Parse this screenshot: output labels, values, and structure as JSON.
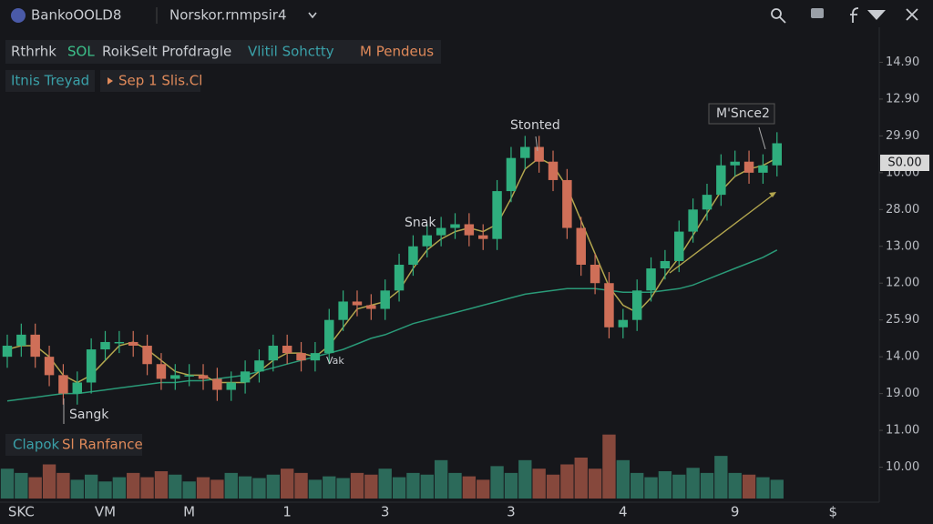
{
  "toolbar": {
    "title": "BankoOOLD8",
    "menu": "Norskor.rnmpsir4"
  },
  "chart_data": {
    "type": "candlestick",
    "legend": [
      {
        "text": "Rthrhk",
        "color": "#c9ccd1"
      },
      {
        "text": "SOL",
        "color": "#3cc08a"
      },
      {
        "text": "RoikSelt Profdragle",
        "color": "#c9ccd1"
      },
      {
        "text": "Vlitil Sohctty",
        "color": "#3aa0a8"
      },
      {
        "text": "M Pendeus",
        "color": "#e08a5a"
      }
    ],
    "legend2": [
      {
        "text": "Itnis Treyad",
        "color": "#3aa0a8"
      },
      {
        "text": "Sep 1 Slis.Cl",
        "color": "#e08a5a"
      }
    ],
    "legend3": [
      {
        "text": "Clapok",
        "color": "#3aa0a8"
      },
      {
        "text": "Sl Ranfance",
        "color": "#e08a5a"
      }
    ],
    "annotations": [
      "Stonted",
      "Snak",
      "Sangk",
      "M'Snce2",
      "Vak"
    ],
    "price_badge": "S0.00",
    "categories": [
      null,
      "SKC",
      null,
      null,
      null,
      null,
      null,
      "VM",
      null,
      null,
      null,
      null,
      null,
      "M",
      null,
      null,
      null,
      null,
      null,
      null,
      "1",
      null,
      null,
      null,
      null,
      null,
      null,
      "3",
      null,
      null,
      null,
      null,
      null,
      null,
      null,
      null,
      "3",
      null,
      null,
      null,
      null,
      null,
      null,
      null,
      "4",
      null,
      null,
      null,
      null,
      null,
      null,
      null,
      "9",
      null,
      null,
      null,
      null,
      null,
      null,
      "$"
    ],
    "open": [
      4.0,
      4.3,
      4.6,
      4.0,
      3.5,
      3.0,
      3.3,
      4.2,
      4.4,
      4.4,
      4.3,
      3.8,
      3.4,
      3.5,
      3.5,
      3.4,
      3.1,
      3.3,
      3.6,
      3.9,
      4.3,
      4.1,
      3.9,
      4.1,
      5.0,
      5.5,
      5.4,
      5.3,
      5.8,
      6.5,
      7.0,
      7.3,
      7.5,
      7.6,
      7.3,
      7.2,
      8.5,
      9.4,
      9.7,
      9.3,
      8.8,
      7.5,
      6.5,
      6.0,
      4.8,
      5.0,
      5.8,
      6.4,
      6.6,
      7.4,
      8.0,
      8.4,
      9.2,
      9.3,
      9.0,
      9.2,
      null,
      null,
      null,
      null
    ],
    "high": [
      4.6,
      4.9,
      4.9,
      4.3,
      3.8,
      3.6,
      4.5,
      4.7,
      4.7,
      4.7,
      4.6,
      4.1,
      3.8,
      3.8,
      3.8,
      3.7,
      3.6,
      3.9,
      4.2,
      4.6,
      4.6,
      4.4,
      4.4,
      5.3,
      5.8,
      5.8,
      5.7,
      6.1,
      6.8,
      7.3,
      7.6,
      7.8,
      7.9,
      7.9,
      7.6,
      8.8,
      9.7,
      10.0,
      10.0,
      9.6,
      9.1,
      7.8,
      6.8,
      6.3,
      5.3,
      6.1,
      6.7,
      6.9,
      7.7,
      8.3,
      8.7,
      9.5,
      9.6,
      9.6,
      9.5,
      10.1,
      null,
      null,
      null,
      null
    ],
    "low": [
      3.7,
      4.0,
      3.7,
      3.2,
      2.7,
      2.7,
      3.0,
      3.9,
      4.1,
      4.0,
      3.5,
      3.1,
      3.1,
      3.2,
      3.1,
      2.8,
      2.8,
      3.0,
      3.3,
      3.6,
      3.8,
      3.6,
      3.6,
      3.8,
      4.7,
      5.1,
      5.0,
      5.0,
      5.5,
      6.2,
      6.7,
      7.0,
      7.2,
      7.0,
      6.9,
      6.9,
      8.2,
      9.1,
      9.0,
      8.5,
      7.2,
      6.2,
      5.7,
      4.5,
      4.5,
      4.7,
      5.5,
      6.1,
      6.3,
      7.1,
      7.7,
      8.1,
      8.9,
      8.7,
      8.7,
      8.9,
      null,
      null,
      null,
      null
    ],
    "close": [
      4.3,
      4.6,
      4.0,
      3.5,
      3.0,
      3.3,
      4.2,
      4.4,
      4.4,
      4.3,
      3.8,
      3.4,
      3.5,
      3.5,
      3.4,
      3.1,
      3.3,
      3.6,
      3.9,
      4.3,
      4.1,
      3.9,
      4.1,
      5.0,
      5.5,
      5.4,
      5.3,
      5.8,
      6.5,
      7.0,
      7.3,
      7.5,
      7.6,
      7.3,
      7.2,
      8.5,
      9.4,
      9.7,
      9.3,
      8.8,
      7.5,
      6.5,
      6.0,
      4.8,
      5.0,
      5.8,
      6.4,
      6.6,
      7.4,
      8.0,
      8.4,
      9.2,
      9.3,
      9.0,
      9.2,
      9.8,
      null,
      null,
      null,
      null
    ],
    "volume": [
      35,
      30,
      25,
      40,
      30,
      22,
      28,
      20,
      25,
      30,
      25,
      32,
      28,
      20,
      25,
      22,
      30,
      26,
      24,
      28,
      35,
      30,
      22,
      26,
      24,
      30,
      28,
      35,
      25,
      30,
      28,
      45,
      30,
      26,
      22,
      38,
      30,
      45,
      35,
      28,
      40,
      48,
      35,
      75,
      45,
      30,
      25,
      32,
      28,
      36,
      30,
      50,
      30,
      28,
      25,
      22,
      null,
      null,
      null,
      null
    ],
    "lines": [
      {
        "color": "#2a9a78",
        "values": [
          2.8,
          2.85,
          2.9,
          2.95,
          3.0,
          3.0,
          3.05,
          3.1,
          3.15,
          3.2,
          3.25,
          3.3,
          3.3,
          3.35,
          3.35,
          3.4,
          3.45,
          3.5,
          3.6,
          3.7,
          3.8,
          3.9,
          4.0,
          4.1,
          4.2,
          4.35,
          4.5,
          4.6,
          4.75,
          4.9,
          5.0,
          5.1,
          5.2,
          5.3,
          5.4,
          5.5,
          5.6,
          5.7,
          5.75,
          5.8,
          5.85,
          5.85,
          5.85,
          5.8,
          5.75,
          5.75,
          5.75,
          5.8,
          5.85,
          5.95,
          6.1,
          6.25,
          6.4,
          6.55,
          6.7,
          6.9,
          null,
          null,
          null,
          null
        ]
      },
      {
        "color": "#b3a64e",
        "values": [
          4.2,
          4.3,
          4.3,
          4.0,
          3.5,
          3.3,
          3.5,
          3.9,
          4.3,
          4.4,
          4.2,
          3.9,
          3.6,
          3.5,
          3.5,
          3.3,
          3.3,
          3.3,
          3.6,
          3.9,
          4.1,
          4.1,
          4.0,
          4.3,
          4.8,
          5.3,
          5.4,
          5.5,
          5.8,
          6.4,
          6.9,
          7.2,
          7.4,
          7.5,
          7.4,
          7.6,
          8.3,
          9.1,
          9.4,
          9.2,
          8.6,
          7.7,
          6.8,
          5.9,
          5.4,
          5.2,
          5.6,
          6.2,
          6.7,
          7.3,
          7.9,
          8.5,
          8.9,
          9.1,
          9.2,
          9.4,
          null,
          null,
          null,
          null
        ]
      }
    ],
    "up_color": "#2fae7e",
    "down_color": "#cf6f58",
    "volume_up_color": "#2c6a5a",
    "volume_down_color": "#86483c",
    "ylim": [
      0,
      13
    ],
    "yticks": [
      {
        "value": 12,
        "label": "14.90"
      },
      {
        "value": 11,
        "label": "12.90"
      },
      {
        "value": 10,
        "label": "29.90"
      },
      {
        "value": 9,
        "label": "10.00"
      },
      {
        "value": 8,
        "label": "28.00"
      },
      {
        "value": 7,
        "label": "13.00"
      },
      {
        "value": 6,
        "label": "12.00"
      },
      {
        "value": 5,
        "label": "25.90"
      },
      {
        "value": 4,
        "label": "14.00"
      },
      {
        "value": 3,
        "label": "19.00"
      },
      {
        "value": 2,
        "label": "11.00"
      },
      {
        "value": 1,
        "label": "10.00"
      }
    ],
    "vlim": [
      0,
      80
    ]
  }
}
